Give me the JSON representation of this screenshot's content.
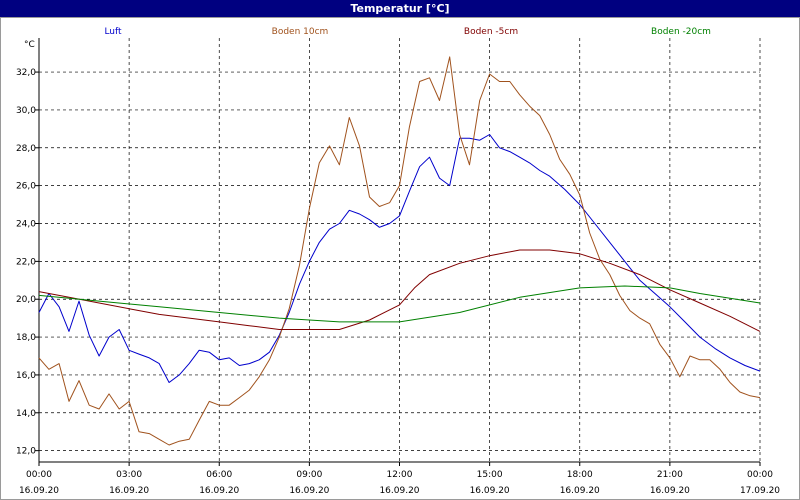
{
  "window": {
    "title": "Temperatur [°C]"
  },
  "chart_data": {
    "type": "line",
    "title": "Temperatur [°C]",
    "ylabel": "°C",
    "xlabel": "",
    "ylim": [
      11.4,
      33.8
    ],
    "xlim": [
      0,
      24
    ],
    "grid": true,
    "legend_placement": "top",
    "y_ticks": [
      "12,0",
      "14,0",
      "16,0",
      "18,0",
      "20,0",
      "22,0",
      "24,0",
      "26,0",
      "28,0",
      "30,0",
      "32,0"
    ],
    "x_ticks": [
      {
        "time": "00:00",
        "date": "16.09.20"
      },
      {
        "time": "03:00",
        "date": "16.09.20"
      },
      {
        "time": "06:00",
        "date": "16.09.20"
      },
      {
        "time": "09:00",
        "date": "16.09.20"
      },
      {
        "time": "12:00",
        "date": "16.09.20"
      },
      {
        "time": "15:00",
        "date": "16.09.20"
      },
      {
        "time": "18:00",
        "date": "16.09.20"
      },
      {
        "time": "21:00",
        "date": "16.09.20"
      },
      {
        "time": "00:00",
        "date": "17.09.20"
      }
    ],
    "series": [
      {
        "name": "Luft",
        "color": "#0000cc",
        "points": [
          [
            0,
            19.3
          ],
          [
            0.33,
            20.3
          ],
          [
            0.67,
            19.6
          ],
          [
            1.0,
            18.3
          ],
          [
            1.33,
            19.9
          ],
          [
            1.67,
            18.1
          ],
          [
            2.0,
            17.0
          ],
          [
            2.33,
            18.0
          ],
          [
            2.67,
            18.4
          ],
          [
            3.0,
            17.3
          ],
          [
            3.33,
            17.1
          ],
          [
            3.67,
            16.9
          ],
          [
            4.0,
            16.6
          ],
          [
            4.33,
            15.6
          ],
          [
            4.67,
            16.0
          ],
          [
            5.0,
            16.6
          ],
          [
            5.33,
            17.3
          ],
          [
            5.67,
            17.2
          ],
          [
            6.0,
            16.8
          ],
          [
            6.33,
            16.9
          ],
          [
            6.67,
            16.5
          ],
          [
            7.0,
            16.6
          ],
          [
            7.33,
            16.8
          ],
          [
            7.67,
            17.2
          ],
          [
            8.0,
            18.1
          ],
          [
            8.33,
            19.3
          ],
          [
            8.67,
            20.8
          ],
          [
            9.0,
            22.0
          ],
          [
            9.33,
            23.0
          ],
          [
            9.67,
            23.7
          ],
          [
            10.0,
            24.0
          ],
          [
            10.33,
            24.7
          ],
          [
            10.67,
            24.5
          ],
          [
            11.0,
            24.2
          ],
          [
            11.33,
            23.8
          ],
          [
            11.67,
            24.0
          ],
          [
            12.0,
            24.4
          ],
          [
            12.33,
            25.7
          ],
          [
            12.67,
            27.0
          ],
          [
            13.0,
            27.5
          ],
          [
            13.33,
            26.4
          ],
          [
            13.67,
            26.0
          ],
          [
            14.0,
            28.5
          ],
          [
            14.33,
            28.5
          ],
          [
            14.67,
            28.4
          ],
          [
            15.0,
            28.7
          ],
          [
            15.33,
            28.0
          ],
          [
            15.67,
            27.8
          ],
          [
            16.0,
            27.5
          ],
          [
            16.33,
            27.2
          ],
          [
            16.67,
            26.8
          ],
          [
            17.0,
            26.5
          ],
          [
            17.5,
            25.8
          ],
          [
            18.0,
            25.0
          ],
          [
            18.5,
            24.0
          ],
          [
            19.0,
            23.0
          ],
          [
            19.5,
            22.0
          ],
          [
            20.0,
            21.0
          ],
          [
            20.5,
            20.3
          ],
          [
            21.0,
            19.6
          ],
          [
            21.5,
            18.8
          ],
          [
            22.0,
            18.0
          ],
          [
            22.5,
            17.4
          ],
          [
            23.0,
            16.9
          ],
          [
            23.5,
            16.5
          ],
          [
            24.0,
            16.2
          ]
        ]
      },
      {
        "name": "Boden 10cm",
        "color": "#a0521d",
        "points": [
          [
            0,
            16.9
          ],
          [
            0.33,
            16.3
          ],
          [
            0.67,
            16.6
          ],
          [
            1.0,
            14.6
          ],
          [
            1.33,
            15.7
          ],
          [
            1.67,
            14.4
          ],
          [
            2.0,
            14.2
          ],
          [
            2.33,
            15.0
          ],
          [
            2.67,
            14.2
          ],
          [
            3.0,
            14.6
          ],
          [
            3.33,
            13.0
          ],
          [
            3.67,
            12.9
          ],
          [
            4.0,
            12.6
          ],
          [
            4.33,
            12.3
          ],
          [
            4.67,
            12.5
          ],
          [
            5.0,
            12.6
          ],
          [
            5.33,
            13.6
          ],
          [
            5.67,
            14.6
          ],
          [
            6.0,
            14.4
          ],
          [
            6.33,
            14.4
          ],
          [
            6.67,
            14.8
          ],
          [
            7.0,
            15.2
          ],
          [
            7.33,
            15.9
          ],
          [
            7.67,
            16.8
          ],
          [
            8.0,
            18.0
          ],
          [
            8.33,
            19.5
          ],
          [
            8.67,
            21.8
          ],
          [
            9.0,
            24.8
          ],
          [
            9.33,
            27.2
          ],
          [
            9.67,
            28.1
          ],
          [
            10.0,
            27.1
          ],
          [
            10.33,
            29.6
          ],
          [
            10.67,
            28.1
          ],
          [
            11.0,
            25.4
          ],
          [
            11.33,
            24.9
          ],
          [
            11.67,
            25.1
          ],
          [
            12.0,
            26.0
          ],
          [
            12.33,
            29.1
          ],
          [
            12.67,
            31.5
          ],
          [
            13.0,
            31.7
          ],
          [
            13.33,
            30.5
          ],
          [
            13.67,
            32.8
          ],
          [
            14.0,
            28.7
          ],
          [
            14.33,
            27.1
          ],
          [
            14.67,
            30.5
          ],
          [
            15.0,
            31.9
          ],
          [
            15.33,
            31.5
          ],
          [
            15.67,
            31.5
          ],
          [
            16.0,
            30.8
          ],
          [
            16.33,
            30.2
          ],
          [
            16.67,
            29.7
          ],
          [
            17.0,
            28.7
          ],
          [
            17.33,
            27.4
          ],
          [
            17.67,
            26.6
          ],
          [
            18.0,
            25.5
          ],
          [
            18.33,
            23.5
          ],
          [
            18.67,
            22.1
          ],
          [
            19.0,
            21.3
          ],
          [
            19.33,
            20.2
          ],
          [
            19.67,
            19.4
          ],
          [
            20.0,
            19.0
          ],
          [
            20.33,
            18.7
          ],
          [
            20.67,
            17.6
          ],
          [
            21.0,
            16.9
          ],
          [
            21.33,
            15.9
          ],
          [
            21.67,
            17.0
          ],
          [
            22.0,
            16.8
          ],
          [
            22.33,
            16.8
          ],
          [
            22.67,
            16.3
          ],
          [
            23.0,
            15.6
          ],
          [
            23.33,
            15.1
          ],
          [
            23.67,
            14.9
          ],
          [
            24.0,
            14.8
          ]
        ]
      },
      {
        "name": "Boden -5cm",
        "color": "#800000",
        "points": [
          [
            0,
            20.4
          ],
          [
            1,
            20.1
          ],
          [
            2,
            19.8
          ],
          [
            3,
            19.5
          ],
          [
            4,
            19.2
          ],
          [
            5,
            19.0
          ],
          [
            6,
            18.8
          ],
          [
            7,
            18.6
          ],
          [
            8,
            18.4
          ],
          [
            9,
            18.4
          ],
          [
            10,
            18.4
          ],
          [
            11,
            18.9
          ],
          [
            12,
            19.7
          ],
          [
            12.5,
            20.6
          ],
          [
            13,
            21.3
          ],
          [
            14,
            21.9
          ],
          [
            15,
            22.3
          ],
          [
            16,
            22.6
          ],
          [
            17,
            22.6
          ],
          [
            18,
            22.4
          ],
          [
            19,
            21.9
          ],
          [
            20,
            21.3
          ],
          [
            21,
            20.5
          ],
          [
            22,
            19.8
          ],
          [
            23,
            19.1
          ],
          [
            24,
            18.3
          ]
        ]
      },
      {
        "name": "Boden -20cm",
        "color": "#008000",
        "points": [
          [
            0,
            20.2
          ],
          [
            2,
            19.9
          ],
          [
            4,
            19.6
          ],
          [
            6,
            19.3
          ],
          [
            8,
            19.0
          ],
          [
            10,
            18.8
          ],
          [
            12,
            18.8
          ],
          [
            14,
            19.3
          ],
          [
            16,
            20.1
          ],
          [
            18,
            20.6
          ],
          [
            19.5,
            20.7
          ],
          [
            21,
            20.6
          ],
          [
            22,
            20.3
          ],
          [
            24,
            19.8
          ]
        ]
      }
    ]
  }
}
